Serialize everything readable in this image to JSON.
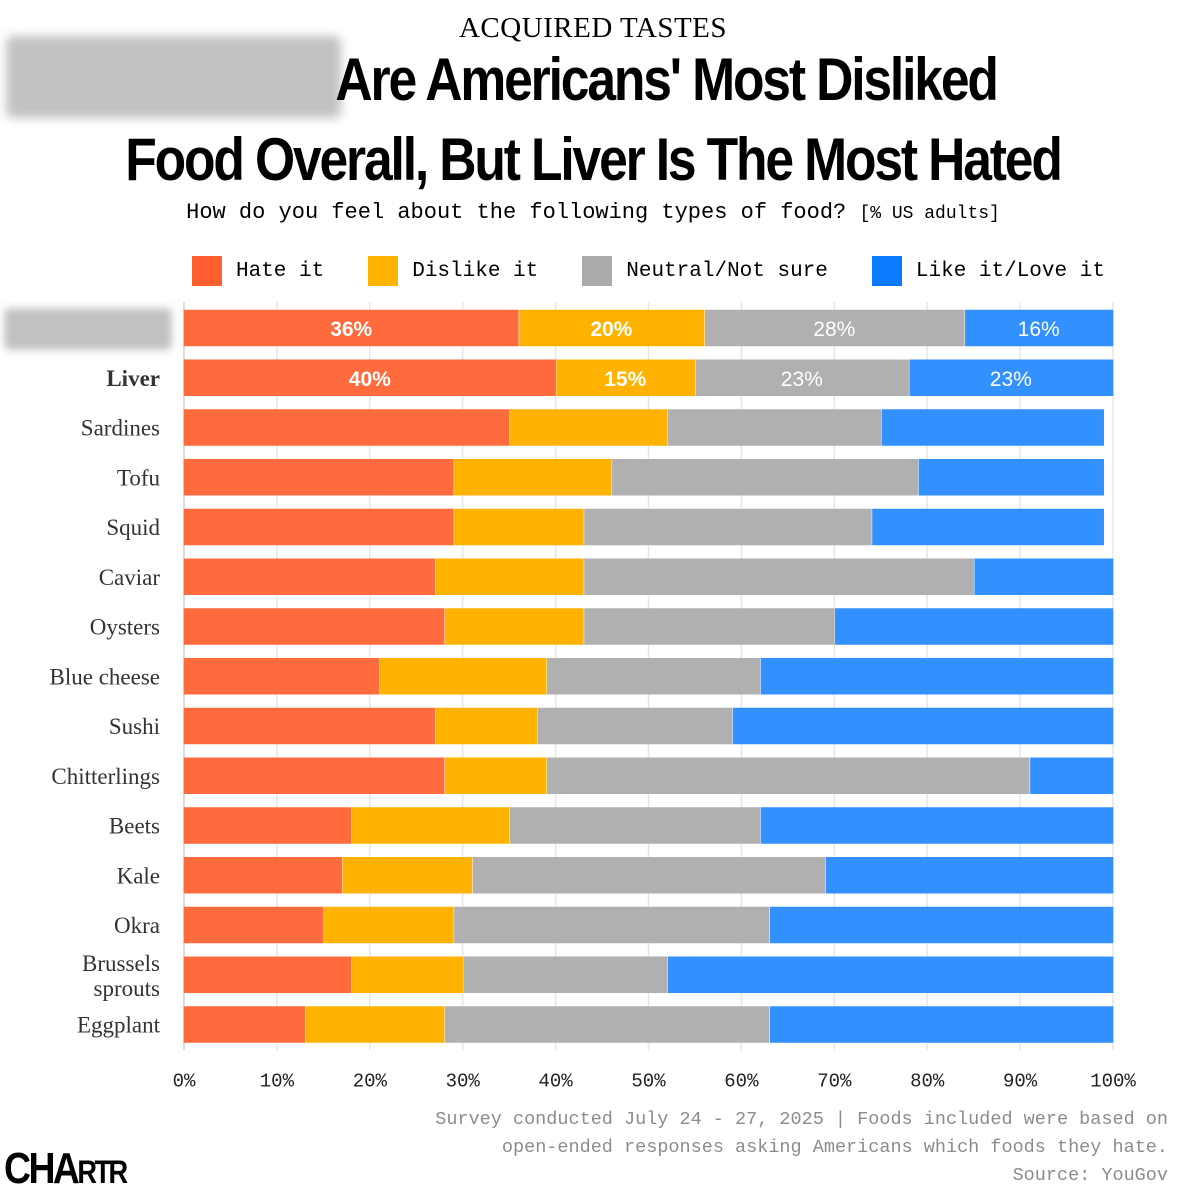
{
  "kicker": "ACQUIRED TASTES",
  "title_line1": "Are Americans' Most Disliked",
  "title_line2": "Food Overall, But Liver Is The Most Hated",
  "subtitle_main": "How do you feel about the following types of food?",
  "subtitle_unit": "[% US adults]",
  "footer": {
    "line1": "Survey conducted July 24 - 27, 2025 | Foods included were based on",
    "line2": "open-ended responses asking Americans which foods they hate.",
    "line3": "Source: YouGov"
  },
  "logo": {
    "big": "CHA",
    "small": "RTR"
  },
  "chart_data": {
    "type": "bar",
    "orientation": "horizontal",
    "stacked": true,
    "title": "Are Americans' Most Disliked Food Overall, But Liver Is The Most Hated",
    "subtitle": "How do you feel about the following types of food? [% US adults]",
    "xlabel": "",
    "ylabel": "",
    "xlim": [
      0,
      100
    ],
    "x_ticks": [
      "0%",
      "10%",
      "20%",
      "30%",
      "40%",
      "50%",
      "60%",
      "70%",
      "80%",
      "90%",
      "100%"
    ],
    "grid": true,
    "legend_position": "top",
    "categories": [
      "",
      "Liver",
      "Sardines",
      "Tofu",
      "Squid",
      "Caviar",
      "Oysters",
      "Blue cheese",
      "Sushi",
      "Chitterlings",
      "Beets",
      "Kale",
      "Okra",
      "Brussels sprouts",
      "Eggplant"
    ],
    "redacted_categories": [
      0
    ],
    "bold_categories": [
      1
    ],
    "series": [
      {
        "name": "Hate it",
        "color": "#ff6b3d",
        "values": [
          36,
          40,
          35,
          29,
          29,
          27,
          28,
          21,
          27,
          28,
          18,
          17,
          15,
          18,
          13
        ]
      },
      {
        "name": "Dislike it",
        "color": "#ffb300",
        "values": [
          20,
          15,
          17,
          17,
          14,
          16,
          15,
          18,
          11,
          11,
          17,
          14,
          14,
          12,
          15
        ]
      },
      {
        "name": "Neutral/Not sure",
        "color": "#b0b0b0",
        "values": [
          28,
          23,
          23,
          33,
          31,
          42,
          27,
          23,
          21,
          52,
          27,
          38,
          34,
          22,
          35
        ]
      },
      {
        "name": "Like it/Love it",
        "color": "#3391ff",
        "values": [
          16,
          23,
          24,
          20,
          25,
          15,
          31,
          38,
          41,
          9,
          38,
          31,
          37,
          49,
          37
        ]
      }
    ],
    "data_labels": [
      {
        "row": 0,
        "labels": [
          "36%",
          "20%",
          "28%",
          "16%"
        ]
      },
      {
        "row": 1,
        "labels": [
          "40%",
          "15%",
          "23%",
          "23%"
        ]
      }
    ],
    "legend_swatch_colors": [
      "#ff5f2e",
      "#ffb300",
      "#aaaaaa",
      "#0a7aff"
    ]
  }
}
